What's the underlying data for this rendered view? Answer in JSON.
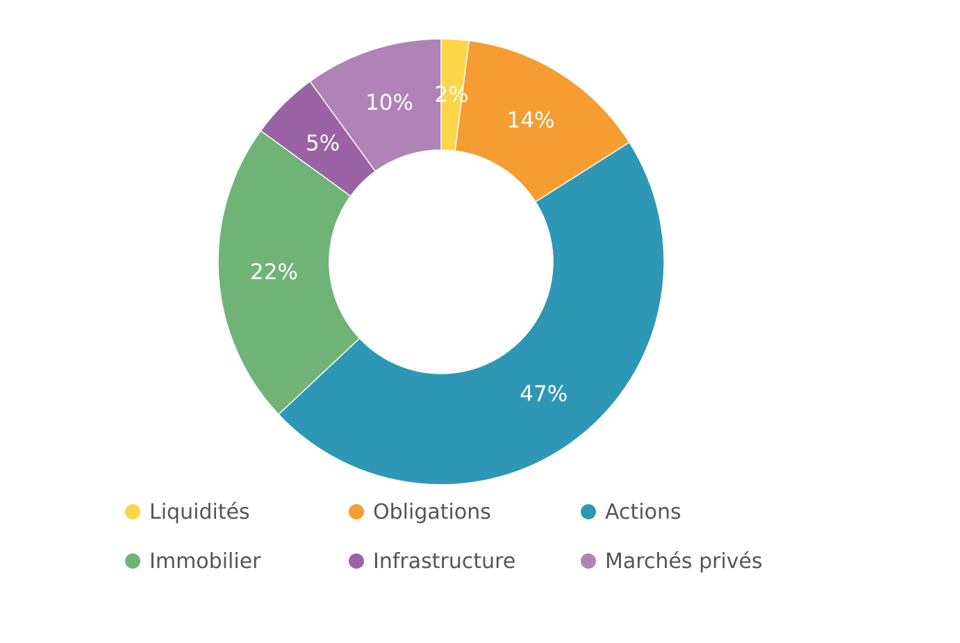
{
  "chart_data": {
    "type": "pie",
    "title": "",
    "donut": true,
    "categories": [
      "Liquidités",
      "Obligations",
      "Actions",
      "Immobilier",
      "Infrastructure",
      "Marchés privés"
    ],
    "values": [
      2,
      14,
      47,
      22,
      5,
      10
    ],
    "value_labels": [
      "2%",
      "14%",
      "47%",
      "22%",
      "5%",
      "10%"
    ],
    "colors": [
      "#FDD549",
      "#F59D33",
      "#2E97B5",
      "#6FB476",
      "#9B62A5",
      "#B083B6"
    ],
    "legend_position": "bottom"
  }
}
